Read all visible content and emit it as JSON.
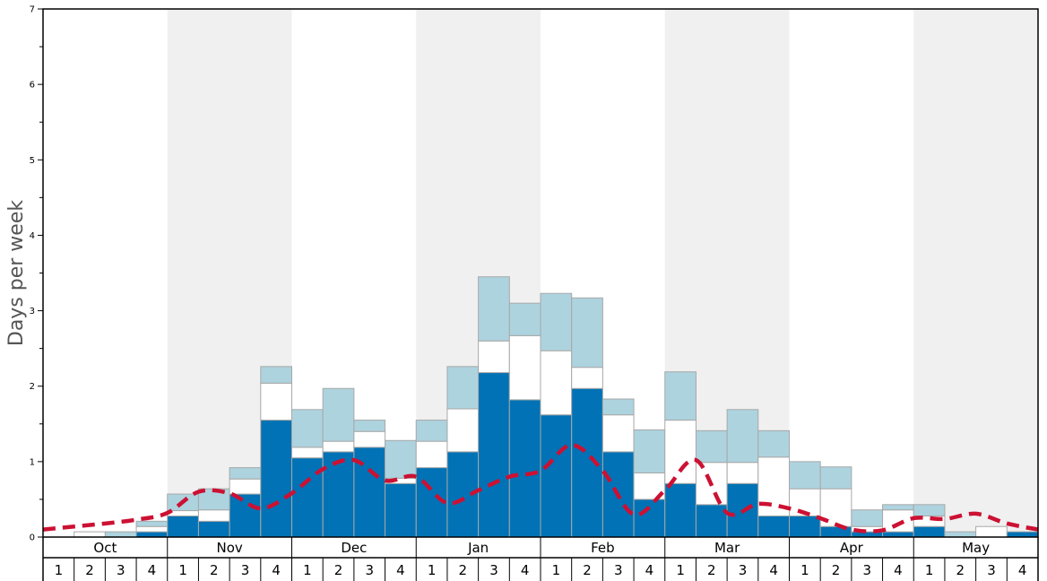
{
  "chart_data": {
    "type": "bar",
    "ylabel": "Days per week",
    "ylim": [
      0,
      7
    ],
    "yticks": [
      "0",
      "1",
      "2",
      "3",
      "4",
      "5",
      "6",
      "7"
    ],
    "months": [
      "Oct",
      "Nov",
      "Dec",
      "Jan",
      "Feb",
      "Mar",
      "Apr",
      "May"
    ],
    "week_labels": [
      "1",
      "2",
      "3",
      "4"
    ],
    "stacked": true,
    "colors": {
      "dark": "#0072b5",
      "middle": "#ffffff",
      "light": "#add3df",
      "line": "#cc1133",
      "band": "#f0f0f0"
    },
    "series": [
      {
        "values": [
          0.0,
          0.0,
          0.0,
          0.07,
          0.28,
          0.21,
          0.57,
          1.55,
          1.05,
          1.13,
          1.19,
          0.71,
          0.92,
          1.13,
          2.18,
          1.82,
          1.62,
          1.97,
          1.13,
          0.5,
          0.71,
          0.43,
          0.71,
          0.28,
          0.28,
          0.14,
          0.07,
          0.07,
          0.14,
          0.0,
          0.0,
          0.07
        ]
      },
      {
        "values": [
          0.0,
          0.07,
          0.0,
          0.07,
          0.07,
          0.15,
          0.2,
          0.49,
          0.14,
          0.14,
          0.21,
          0.07,
          0.35,
          0.57,
          0.42,
          0.85,
          0.85,
          0.28,
          0.49,
          0.35,
          0.84,
          0.56,
          0.28,
          0.78,
          0.36,
          0.5,
          0.07,
          0.29,
          0.14,
          0.0,
          0.14,
          0.0
        ]
      },
      {
        "values": [
          0.0,
          0.0,
          0.07,
          0.07,
          0.22,
          0.28,
          0.15,
          0.22,
          0.5,
          0.7,
          0.15,
          0.5,
          0.28,
          0.56,
          0.85,
          0.43,
          0.76,
          0.92,
          0.21,
          0.57,
          0.64,
          0.42,
          0.7,
          0.35,
          0.36,
          0.29,
          0.22,
          0.07,
          0.15,
          0.07,
          0.0,
          0.0
        ]
      },
      {
        "type": "line",
        "values": [
          0.1,
          0.14,
          0.18,
          0.23,
          0.32,
          0.6,
          0.58,
          0.38,
          0.58,
          0.9,
          1.02,
          0.75,
          0.8,
          0.45,
          0.62,
          0.8,
          0.88,
          1.22,
          0.88,
          0.3,
          0.62,
          1.02,
          0.32,
          0.44,
          0.38,
          0.25,
          0.1,
          0.09,
          0.25,
          0.24,
          0.31,
          0.18,
          0.1
        ]
      }
    ]
  }
}
